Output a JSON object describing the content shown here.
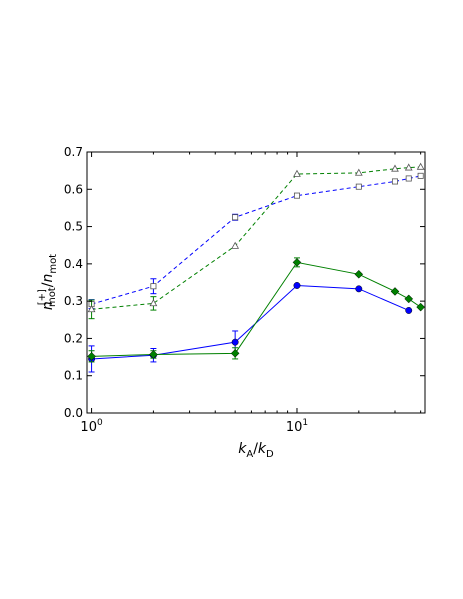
{
  "chart_data": {
    "type": "line",
    "x_scale": "log",
    "xlim": [
      0.95,
      42
    ],
    "ylim": [
      0,
      0.7
    ],
    "yticks": [
      "0.0",
      "0.1",
      "0.2",
      "0.3",
      "0.4",
      "0.5",
      "0.6",
      "0.7"
    ],
    "xticks": [
      {
        "value": 1,
        "base": "10",
        "exp": "0"
      },
      {
        "value": 10,
        "base": "10",
        "exp": "1"
      }
    ],
    "xlabel": {
      "k1": "k",
      "sub1": "A",
      "slash": "/",
      "k2": "k",
      "sub2": "D"
    },
    "ylabel": {
      "n1": "n",
      "sup1": "[+]",
      "sub1": "mot",
      "slash": "/",
      "n2": "n",
      "sub2": "mot"
    },
    "grid": false,
    "legend": "none",
    "series": [
      {
        "color": "#0000ff",
        "style": "dashed",
        "marker": "square-open",
        "x": [
          1,
          2,
          5,
          10,
          20,
          30,
          35,
          40
        ],
        "y": [
          0.292,
          0.34,
          0.525,
          0.583,
          0.607,
          0.621,
          0.629,
          0.636
        ],
        "err": [
          0.012,
          0.02,
          0.008,
          0,
          0,
          0,
          0,
          0
        ]
      },
      {
        "color": "#008000",
        "style": "dashed",
        "marker": "triangle-open",
        "x": [
          1,
          2,
          5,
          10,
          20,
          30,
          35,
          40
        ],
        "y": [
          0.278,
          0.294,
          0.448,
          0.641,
          0.644,
          0.655,
          0.658,
          0.66
        ],
        "err": [
          0.025,
          0.018,
          0,
          0,
          0,
          0,
          0,
          0
        ]
      },
      {
        "color": "#0000ff",
        "style": "solid",
        "marker": "circle",
        "x": [
          1,
          2,
          5,
          10,
          20,
          35
        ],
        "y": [
          0.145,
          0.155,
          0.19,
          0.342,
          0.333,
          0.275
        ],
        "err": [
          0.035,
          0.018,
          0.03,
          0,
          0,
          0
        ]
      },
      {
        "color": "#008000",
        "style": "solid",
        "marker": "diamond",
        "x": [
          1,
          2,
          5,
          10,
          20,
          30,
          35,
          40
        ],
        "y": [
          0.152,
          0.157,
          0.16,
          0.404,
          0.372,
          0.326,
          0.306,
          0.284
        ],
        "err": [
          0.015,
          0.01,
          0.015,
          0.012,
          0,
          0,
          0,
          0
        ]
      }
    ]
  }
}
